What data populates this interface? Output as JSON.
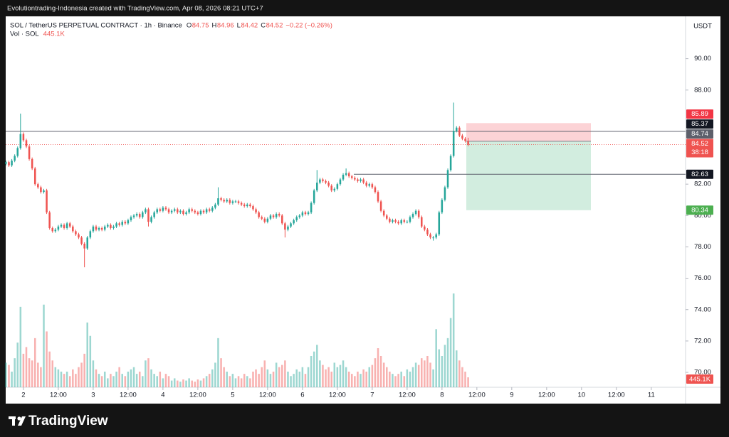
{
  "page_header": {
    "caption": "Evolutiontrading-Indonesia created with TradingView.com, Apr 08, 2026 08:21 UTC+7"
  },
  "footer": {
    "brand": "TradingView"
  },
  "chart_data": {
    "type": "candlestick",
    "title": "SOL / TetherUS PERPETUAL CONTRACT · 1h · Binance",
    "legend_ohlc": [
      {
        "key": "O",
        "value": 84.75
      },
      {
        "key": "H",
        "value": 84.96
      },
      {
        "key": "L",
        "value": 84.42
      },
      {
        "key": "C",
        "value": 84.52
      }
    ],
    "legend_change": "−0.22 (−0.26%)",
    "volume_title": "Vol · SOL",
    "volume_legend": "445.1K",
    "currency": "USDT",
    "up_color": "#26a69a",
    "down_color": "#ef5350",
    "x": [
      18,
      19,
      20,
      21,
      22,
      23,
      24,
      25,
      26,
      27,
      28,
      29,
      30,
      31,
      32,
      33,
      34,
      35,
      36,
      37,
      38,
      39,
      40,
      41,
      42,
      43,
      44,
      45,
      46,
      47,
      48,
      49,
      50,
      51,
      52,
      53,
      54,
      55,
      56,
      57,
      58,
      59,
      60,
      61,
      62,
      63,
      64,
      65,
      66,
      67,
      68,
      69,
      70,
      71,
      72,
      73,
      74,
      75,
      76,
      77,
      78,
      79,
      80,
      81,
      82,
      83,
      84,
      85,
      86,
      87,
      88,
      89,
      90,
      91,
      92,
      93,
      94,
      95,
      96,
      97,
      98,
      99,
      100,
      101,
      102,
      103,
      104,
      105,
      106,
      107,
      108,
      109,
      110,
      111,
      112,
      113,
      114,
      115,
      116,
      117,
      118,
      119,
      120,
      121,
      122,
      123,
      124,
      125,
      126,
      127,
      128,
      129,
      130,
      131,
      132,
      133,
      134,
      135,
      136,
      137,
      138,
      139,
      140,
      141,
      142,
      143,
      144,
      145,
      146,
      147,
      148,
      149,
      150,
      151,
      152,
      153,
      154,
      155,
      156,
      157,
      158,
      159,
      160,
      161,
      162,
      163,
      164,
      165,
      166,
      167,
      168,
      169,
      170,
      171,
      172,
      173,
      174,
      175,
      176,
      177
    ],
    "open": [
      83.3,
      83.4,
      83.2,
      83.5,
      83.8,
      84.3,
      85.2,
      84.8,
      84.4,
      83.6,
      83.0,
      82.0,
      81.8,
      81.5,
      81.6,
      80.2,
      79.2,
      79.0,
      79.1,
      79.3,
      79.4,
      79.2,
      79.5,
      79.3,
      79.0,
      78.8,
      78.6,
      78.2,
      77.9,
      78.6,
      79.0,
      79.3,
      79.1,
      79.2,
      79.1,
      79.3,
      79.4,
      79.2,
      79.3,
      79.5,
      79.4,
      79.6,
      79.5,
      79.7,
      79.9,
      80.0,
      80.1,
      79.9,
      80.2,
      80.4,
      79.6,
      79.9,
      80.2,
      80.4,
      80.3,
      80.5,
      80.4,
      80.2,
      80.3,
      80.4,
      80.2,
      80.3,
      80.1,
      80.2,
      80.4,
      80.3,
      80.2,
      80.1,
      80.3,
      80.2,
      80.4,
      80.3,
      80.5,
      80.7,
      81.1,
      81.0,
      80.9,
      81.0,
      80.8,
      80.9,
      80.9,
      80.8,
      80.7,
      80.6,
      80.7,
      80.6,
      80.4,
      80.2,
      79.9,
      79.8,
      79.6,
      79.8,
      80.0,
      79.9,
      80.1,
      80.0,
      79.5,
      79.1,
      79.3,
      79.5,
      79.7,
      79.9,
      80.0,
      80.2,
      80.1,
      80.2,
      80.8,
      81.6,
      82.1,
      82.3,
      82.2,
      82.1,
      81.9,
      81.6,
      81.7,
      82.0,
      82.3,
      82.6,
      82.7,
      82.5,
      82.4,
      82.3,
      82.2,
      82.3,
      82.1,
      81.9,
      82.0,
      81.8,
      81.5,
      80.9,
      80.3,
      80.0,
      79.8,
      79.6,
      79.7,
      79.6,
      79.5,
      79.7,
      79.6,
      79.6,
      79.9,
      80.1,
      80.3,
      79.9,
      79.3,
      79.1,
      78.8,
      78.6,
      78.6,
      78.8,
      80.2,
      81.0,
      81.8,
      82.9,
      83.8,
      85.4,
      85.6,
      85.1,
      84.9,
      84.75
    ],
    "high": [
      83.5,
      83.5,
      83.6,
      83.9,
      84.4,
      86.5,
      85.3,
      84.9,
      84.5,
      83.7,
      83.1,
      82.1,
      81.9,
      81.7,
      81.7,
      80.3,
      79.3,
      79.2,
      79.4,
      79.5,
      79.5,
      79.6,
      79.6,
      79.4,
      79.1,
      78.9,
      78.7,
      78.3,
      78.7,
      79.1,
      79.4,
      79.4,
      79.3,
      79.3,
      79.4,
      79.5,
      79.5,
      79.4,
      79.6,
      79.6,
      79.7,
      79.7,
      79.8,
      80.0,
      80.1,
      80.2,
      80.2,
      80.3,
      80.5,
      80.5,
      80.0,
      80.3,
      80.5,
      80.5,
      80.6,
      80.6,
      80.5,
      80.4,
      80.5,
      80.5,
      80.4,
      80.4,
      80.3,
      80.5,
      80.5,
      80.4,
      80.3,
      80.4,
      80.4,
      80.5,
      80.5,
      80.6,
      80.8,
      81.8,
      81.2,
      81.1,
      81.1,
      81.1,
      81.0,
      81.0,
      81.0,
      80.9,
      80.8,
      80.8,
      80.8,
      80.7,
      80.5,
      80.3,
      80.0,
      79.9,
      79.9,
      80.1,
      80.1,
      80.2,
      80.2,
      80.1,
      79.6,
      79.4,
      79.6,
      79.8,
      80.0,
      80.1,
      80.3,
      80.3,
      80.3,
      80.9,
      81.7,
      82.9,
      82.4,
      82.4,
      82.3,
      82.2,
      82.0,
      81.8,
      82.1,
      82.4,
      82.7,
      83.0,
      82.8,
      82.6,
      82.5,
      82.4,
      82.4,
      82.4,
      82.2,
      82.1,
      82.1,
      81.9,
      81.6,
      81.0,
      80.4,
      80.1,
      79.9,
      79.8,
      79.8,
      79.7,
      79.8,
      79.8,
      79.7,
      80.0,
      80.2,
      80.4,
      80.4,
      80.0,
      79.4,
      79.2,
      78.9,
      78.7,
      78.9,
      80.3,
      81.1,
      81.9,
      83.0,
      83.9,
      87.2,
      85.7,
      85.7,
      85.2,
      85.0,
      84.96
    ],
    "low": [
      83.2,
      83.1,
      83.1,
      83.4,
      83.7,
      84.2,
      84.7,
      84.3,
      83.5,
      82.9,
      81.9,
      81.7,
      81.4,
      81.4,
      80.1,
      79.1,
      78.9,
      78.9,
      79.0,
      79.2,
      79.1,
      79.1,
      79.2,
      78.9,
      78.7,
      78.5,
      78.1,
      76.7,
      77.8,
      78.5,
      78.9,
      79.0,
      79.0,
      79.0,
      79.0,
      79.2,
      79.1,
      79.1,
      79.2,
      79.3,
      79.3,
      79.4,
      79.4,
      79.6,
      79.8,
      79.9,
      79.8,
      79.8,
      80.1,
      79.3,
      79.5,
      79.8,
      80.1,
      80.2,
      80.2,
      80.3,
      80.1,
      80.1,
      80.2,
      80.1,
      80.1,
      80.0,
      80.0,
      80.1,
      80.2,
      80.1,
      80.0,
      80.0,
      80.1,
      80.1,
      80.2,
      80.2,
      80.4,
      80.6,
      80.9,
      80.8,
      80.8,
      80.7,
      80.7,
      80.8,
      80.7,
      80.6,
      80.5,
      80.5,
      80.5,
      80.3,
      80.1,
      79.8,
      79.7,
      79.5,
      79.5,
      79.7,
      79.8,
      79.8,
      79.9,
      79.4,
      78.6,
      79.0,
      79.2,
      79.4,
      79.6,
      79.8,
      79.9,
      80.0,
      80.0,
      80.1,
      80.7,
      81.5,
      82.0,
      82.1,
      82.0,
      81.8,
      81.5,
      81.5,
      81.6,
      81.9,
      82.2,
      82.5,
      82.4,
      82.3,
      82.2,
      82.1,
      82.1,
      82.0,
      81.8,
      81.8,
      81.7,
      81.4,
      80.8,
      80.2,
      79.9,
      79.7,
      79.5,
      79.5,
      79.5,
      79.4,
      79.4,
      79.5,
      79.5,
      79.5,
      79.8,
      80.0,
      79.8,
      79.2,
      79.0,
      78.7,
      78.5,
      78.4,
      78.5,
      78.7,
      80.1,
      80.9,
      81.7,
      82.8,
      83.7,
      85.3,
      85.0,
      84.8,
      84.65,
      84.42
    ],
    "close": [
      83.4,
      83.2,
      83.5,
      83.8,
      84.3,
      85.2,
      84.8,
      84.4,
      83.6,
      83.0,
      82.0,
      81.8,
      81.5,
      81.6,
      80.2,
      79.2,
      79.0,
      79.1,
      79.3,
      79.4,
      79.2,
      79.5,
      79.3,
      79.0,
      78.8,
      78.6,
      78.2,
      77.9,
      78.6,
      79.0,
      79.3,
      79.1,
      79.2,
      79.1,
      79.3,
      79.4,
      79.2,
      79.3,
      79.5,
      79.4,
      79.6,
      79.5,
      79.7,
      79.9,
      80.0,
      80.1,
      79.9,
      80.2,
      80.4,
      79.6,
      79.9,
      80.2,
      80.4,
      80.3,
      80.5,
      80.4,
      80.2,
      80.3,
      80.4,
      80.2,
      80.3,
      80.1,
      80.2,
      80.4,
      80.3,
      80.2,
      80.1,
      80.3,
      80.2,
      80.4,
      80.3,
      80.5,
      80.7,
      81.1,
      81.0,
      80.9,
      81.0,
      80.8,
      80.9,
      80.9,
      80.8,
      80.7,
      80.6,
      80.7,
      80.6,
      80.4,
      80.2,
      79.9,
      79.8,
      79.6,
      79.8,
      80.0,
      79.9,
      80.1,
      80.0,
      79.5,
      79.1,
      79.3,
      79.5,
      79.7,
      79.9,
      80.0,
      80.2,
      80.1,
      80.2,
      80.8,
      81.6,
      82.1,
      82.3,
      82.2,
      82.1,
      81.9,
      81.6,
      81.7,
      82.0,
      82.3,
      82.6,
      82.7,
      82.5,
      82.4,
      82.3,
      82.2,
      82.3,
      82.1,
      81.9,
      82.0,
      81.8,
      81.5,
      80.9,
      80.3,
      80.0,
      79.8,
      79.6,
      79.7,
      79.6,
      79.5,
      79.7,
      79.6,
      79.6,
      79.9,
      80.1,
      80.3,
      79.9,
      79.3,
      79.1,
      78.8,
      78.6,
      78.6,
      78.8,
      80.2,
      81.0,
      81.8,
      82.9,
      83.8,
      85.4,
      85.6,
      85.1,
      84.9,
      84.75,
      84.52
    ],
    "volume": [
      1100,
      1000,
      700,
      1300,
      2000,
      3600,
      1500,
      1800,
      1300,
      1200,
      2200,
      1100,
      900,
      3700,
      2500,
      1600,
      1200,
      900,
      800,
      700,
      600,
      700,
      500,
      800,
      600,
      900,
      1100,
      1500,
      2900,
      2300,
      1200,
      800,
      600,
      500,
      700,
      400,
      600,
      500,
      700,
      900,
      600,
      500,
      700,
      800,
      900,
      600,
      700,
      500,
      1200,
      1300,
      800,
      600,
      500,
      700,
      400,
      600,
      500,
      300,
      400,
      300,
      250,
      350,
      300,
      400,
      300,
      250,
      350,
      300,
      400,
      500,
      600,
      800,
      1100,
      2200,
      1300,
      900,
      700,
      500,
      600,
      400,
      500,
      400,
      600,
      500,
      400,
      700,
      800,
      600,
      900,
      1200,
      800,
      600,
      700,
      1100,
      900,
      1000,
      1200,
      700,
      500,
      600,
      800,
      700,
      900,
      600,
      900,
      1400,
      1600,
      1900,
      1200,
      1000,
      800,
      900,
      700,
      1100,
      900,
      1000,
      1200,
      900,
      700,
      600,
      500,
      700,
      600,
      800,
      700,
      900,
      1000,
      1300,
      1750,
      1400,
      1100,
      900,
      700,
      600,
      500,
      600,
      700,
      500,
      800,
      700,
      900,
      1100,
      1000,
      1300,
      1200,
      1400,
      1100,
      800,
      2600,
      1700,
      1400,
      1900,
      2200,
      3100,
      4200,
      1650,
      1200,
      900,
      700,
      445.1
    ],
    "xlim": [
      17.9,
      251.8
    ],
    "xticks": [
      {
        "value": 24,
        "label": "2"
      },
      {
        "value": 36,
        "label": "12:00"
      },
      {
        "value": 48,
        "label": "3"
      },
      {
        "value": 60,
        "label": "12:00"
      },
      {
        "value": 72,
        "label": "4"
      },
      {
        "value": 84,
        "label": "12:00"
      },
      {
        "value": 96,
        "label": "5"
      },
      {
        "value": 108,
        "label": "12:00"
      },
      {
        "value": 120,
        "label": "6"
      },
      {
        "value": 132,
        "label": "12:00"
      },
      {
        "value": 144,
        "label": "7"
      },
      {
        "value": 156,
        "label": "12:00"
      },
      {
        "value": 168,
        "label": "8"
      },
      {
        "value": 180,
        "label": "12:00"
      },
      {
        "value": 192,
        "label": "9"
      },
      {
        "value": 204,
        "label": "12:00"
      },
      {
        "value": 216,
        "label": "10"
      },
      {
        "value": 228,
        "label": "12:00"
      },
      {
        "value": 240,
        "label": "11"
      }
    ],
    "ylim": [
      69.05,
      92.7
    ],
    "yticks": [
      {
        "value": 70,
        "label": "70.00"
      },
      {
        "value": 72,
        "label": "72.00"
      },
      {
        "value": 74,
        "label": "74.00"
      },
      {
        "value": 76,
        "label": "76.00"
      },
      {
        "value": 78,
        "label": "78.00"
      },
      {
        "value": 80,
        "label": "80.00"
      },
      {
        "value": 82,
        "label": "82.00"
      },
      {
        "value": 88,
        "label": "88.00"
      },
      {
        "value": 90,
        "label": "90.00"
      }
    ],
    "horizontal_lines": [
      85.37,
      82.63
    ],
    "position": {
      "stop": 85.89,
      "entry": 84.74,
      "target": 80.34
    },
    "last_price": 84.52,
    "countdown": "38:18"
  }
}
